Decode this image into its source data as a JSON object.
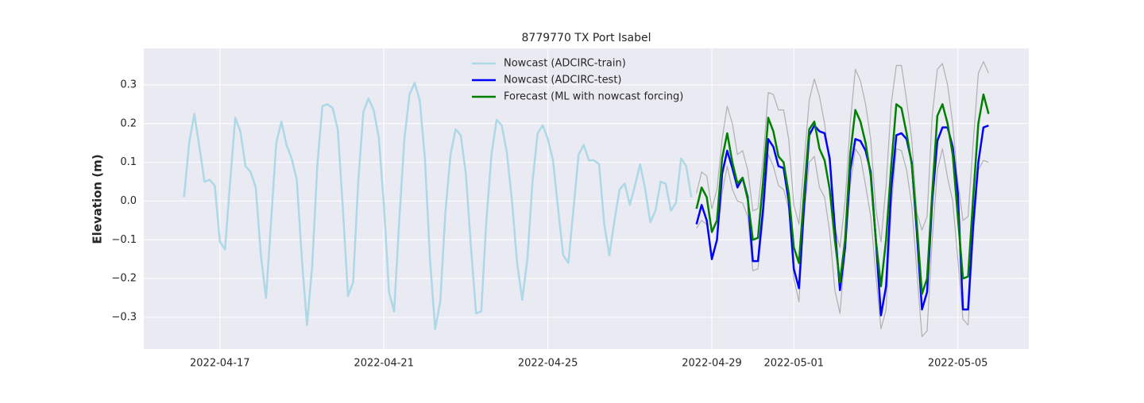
{
  "chart_data": {
    "type": "line",
    "title": "8779770 TX Port Isabel",
    "y_label": "Elevation (m)",
    "x": [
      "2022-04-16 03:00",
      "2022-04-16 06:00",
      "2022-04-16 09:00",
      "2022-04-16 12:00",
      "2022-04-16 15:00",
      "2022-04-16 18:00",
      "2022-04-16 21:00",
      "2022-04-17 00:00",
      "2022-04-17 03:00",
      "2022-04-17 06:00",
      "2022-04-17 09:00",
      "2022-04-17 12:00",
      "2022-04-17 15:00",
      "2022-04-17 18:00",
      "2022-04-17 21:00",
      "2022-04-18 00:00",
      "2022-04-18 03:00",
      "2022-04-18 06:00",
      "2022-04-18 09:00",
      "2022-04-18 12:00",
      "2022-04-18 15:00",
      "2022-04-18 18:00",
      "2022-04-18 21:00",
      "2022-04-19 00:00",
      "2022-04-19 03:00",
      "2022-04-19 06:00",
      "2022-04-19 09:00",
      "2022-04-19 12:00",
      "2022-04-19 15:00",
      "2022-04-19 18:00",
      "2022-04-19 21:00",
      "2022-04-20 00:00",
      "2022-04-20 03:00",
      "2022-04-20 06:00",
      "2022-04-20 09:00",
      "2022-04-20 12:00",
      "2022-04-20 15:00",
      "2022-04-20 18:00",
      "2022-04-20 21:00",
      "2022-04-21 00:00",
      "2022-04-21 03:00",
      "2022-04-21 06:00",
      "2022-04-21 09:00",
      "2022-04-21 12:00",
      "2022-04-21 15:00",
      "2022-04-21 18:00",
      "2022-04-21 21:00",
      "2022-04-22 00:00",
      "2022-04-22 03:00",
      "2022-04-22 06:00",
      "2022-04-22 09:00",
      "2022-04-22 12:00",
      "2022-04-22 15:00",
      "2022-04-22 18:00",
      "2022-04-22 21:00",
      "2022-04-23 00:00",
      "2022-04-23 03:00",
      "2022-04-23 06:00",
      "2022-04-23 09:00",
      "2022-04-23 12:00",
      "2022-04-23 15:00",
      "2022-04-23 18:00",
      "2022-04-23 21:00",
      "2022-04-24 00:00",
      "2022-04-24 03:00",
      "2022-04-24 06:00",
      "2022-04-24 09:00",
      "2022-04-24 12:00",
      "2022-04-24 15:00",
      "2022-04-24 18:00",
      "2022-04-24 21:00",
      "2022-04-25 00:00",
      "2022-04-25 03:00",
      "2022-04-25 06:00",
      "2022-04-25 09:00",
      "2022-04-25 12:00",
      "2022-04-25 15:00",
      "2022-04-25 18:00",
      "2022-04-25 21:00",
      "2022-04-26 00:00",
      "2022-04-26 03:00",
      "2022-04-26 06:00",
      "2022-04-26 09:00",
      "2022-04-26 12:00",
      "2022-04-26 15:00",
      "2022-04-26 18:00",
      "2022-04-26 21:00",
      "2022-04-27 00:00",
      "2022-04-27 03:00",
      "2022-04-27 06:00",
      "2022-04-27 09:00",
      "2022-04-27 12:00",
      "2022-04-27 15:00",
      "2022-04-27 18:00",
      "2022-04-27 21:00",
      "2022-04-28 00:00",
      "2022-04-28 03:00",
      "2022-04-28 06:00",
      "2022-04-28 09:00",
      "2022-04-28 12:00",
      "2022-04-28 15:00",
      "2022-04-28 18:00",
      "2022-04-28 21:00",
      "2022-04-29 00:00",
      "2022-04-29 03:00",
      "2022-04-29 06:00",
      "2022-04-29 09:00",
      "2022-04-29 12:00",
      "2022-04-29 15:00",
      "2022-04-29 18:00",
      "2022-04-29 21:00",
      "2022-04-30 00:00",
      "2022-04-30 03:00",
      "2022-04-30 06:00",
      "2022-04-30 09:00",
      "2022-04-30 12:00",
      "2022-04-30 15:00",
      "2022-04-30 18:00",
      "2022-04-30 21:00",
      "2022-05-01 00:00",
      "2022-05-01 03:00",
      "2022-05-01 06:00",
      "2022-05-01 09:00",
      "2022-05-01 12:00",
      "2022-05-01 15:00",
      "2022-05-01 18:00",
      "2022-05-01 21:00",
      "2022-05-02 00:00",
      "2022-05-02 03:00",
      "2022-05-02 06:00",
      "2022-05-02 09:00",
      "2022-05-02 12:00",
      "2022-05-02 15:00",
      "2022-05-02 18:00",
      "2022-05-02 21:00",
      "2022-05-03 00:00",
      "2022-05-03 03:00",
      "2022-05-03 06:00",
      "2022-05-03 09:00",
      "2022-05-03 12:00",
      "2022-05-03 15:00",
      "2022-05-03 18:00",
      "2022-05-03 21:00",
      "2022-05-04 00:00",
      "2022-05-04 03:00",
      "2022-05-04 06:00",
      "2022-05-04 09:00",
      "2022-05-04 12:00",
      "2022-05-04 15:00",
      "2022-05-04 18:00",
      "2022-05-04 21:00",
      "2022-05-05 00:00",
      "2022-05-05 03:00",
      "2022-05-05 06:00",
      "2022-05-05 09:00",
      "2022-05-05 12:00",
      "2022-05-05 15:00",
      "2022-05-05 18:00"
    ],
    "series": [
      {
        "color": "#b0b0b0",
        "width": 1.2,
        "values": [
          null,
          null,
          null,
          null,
          null,
          null,
          null,
          null,
          null,
          null,
          null,
          null,
          null,
          null,
          null,
          null,
          null,
          null,
          null,
          null,
          null,
          null,
          null,
          null,
          null,
          null,
          null,
          null,
          null,
          null,
          null,
          null,
          null,
          null,
          null,
          null,
          null,
          null,
          null,
          null,
          null,
          null,
          null,
          null,
          null,
          null,
          null,
          null,
          null,
          null,
          null,
          null,
          null,
          null,
          null,
          null,
          null,
          null,
          null,
          null,
          null,
          null,
          null,
          null,
          null,
          null,
          null,
          null,
          null,
          null,
          null,
          null,
          null,
          null,
          null,
          null,
          null,
          null,
          null,
          null,
          null,
          null,
          null,
          null,
          null,
          null,
          null,
          null,
          null,
          null,
          null,
          null,
          null,
          null,
          null,
          null,
          null,
          null,
          null,
          null,
          0.02,
          0.075,
          0.065,
          -0.02,
          0.03,
          0.16,
          0.245,
          0.2,
          0.12,
          0.13,
          0.08,
          -0.025,
          -0.02,
          0.11,
          0.28,
          0.275,
          0.235,
          0.235,
          0.16,
          -0.01,
          -0.06,
          0.1,
          0.26,
          0.315,
          0.27,
          0.2,
          0.09,
          -0.07,
          -0.12,
          0.0,
          0.2,
          0.34,
          0.31,
          0.25,
          0.16,
          -0.02,
          -0.105,
          0.04,
          0.25,
          0.35,
          0.35,
          0.26,
          0.16,
          -0.03,
          -0.075,
          -0.04,
          0.22,
          0.34,
          0.355,
          0.3,
          0.2,
          0.05,
          -0.05,
          -0.04,
          0.15,
          0.33,
          0.36,
          0.33
        ]
      },
      {
        "color": "#b0b0b0",
        "width": 1.2,
        "values": [
          null,
          null,
          null,
          null,
          null,
          null,
          null,
          null,
          null,
          null,
          null,
          null,
          null,
          null,
          null,
          null,
          null,
          null,
          null,
          null,
          null,
          null,
          null,
          null,
          null,
          null,
          null,
          null,
          null,
          null,
          null,
          null,
          null,
          null,
          null,
          null,
          null,
          null,
          null,
          null,
          null,
          null,
          null,
          null,
          null,
          null,
          null,
          null,
          null,
          null,
          null,
          null,
          null,
          null,
          null,
          null,
          null,
          null,
          null,
          null,
          null,
          null,
          null,
          null,
          null,
          null,
          null,
          null,
          null,
          null,
          null,
          null,
          null,
          null,
          null,
          null,
          null,
          null,
          null,
          null,
          null,
          null,
          null,
          null,
          null,
          null,
          null,
          null,
          null,
          null,
          null,
          null,
          null,
          null,
          null,
          null,
          null,
          null,
          null,
          null,
          -0.07,
          -0.05,
          -0.06,
          -0.14,
          -0.1,
          0.02,
          0.09,
          0.03,
          0.0,
          -0.005,
          -0.04,
          -0.18,
          -0.175,
          -0.05,
          0.12,
          0.09,
          0.04,
          0.03,
          -0.02,
          -0.2,
          -0.26,
          -0.04,
          0.1,
          0.115,
          0.035,
          0.01,
          -0.08,
          -0.23,
          -0.29,
          -0.13,
          0.04,
          0.135,
          0.115,
          0.04,
          -0.04,
          -0.19,
          -0.33,
          -0.28,
          -0.02,
          0.135,
          0.13,
          0.08,
          -0.01,
          -0.18,
          -0.35,
          -0.335,
          -0.1,
          0.08,
          0.135,
          0.06,
          0.0,
          -0.15,
          -0.305,
          -0.32,
          -0.1,
          0.08,
          0.105,
          0.1
        ]
      },
      {
        "name": "Nowcast (ADCIRC-train)",
        "color": "#add8e6",
        "width": 2.5,
        "values": [
          0.01,
          0.15,
          0.225,
          0.14,
          0.05,
          0.055,
          0.04,
          -0.105,
          -0.125,
          0.05,
          0.215,
          0.18,
          0.09,
          0.075,
          0.035,
          -0.14,
          -0.25,
          -0.05,
          0.15,
          0.205,
          0.145,
          0.11,
          0.055,
          -0.15,
          -0.32,
          -0.17,
          0.09,
          0.245,
          0.25,
          0.24,
          0.185,
          -0.02,
          -0.245,
          -0.21,
          0.05,
          0.23,
          0.265,
          0.235,
          0.165,
          -0.01,
          -0.235,
          -0.285,
          -0.05,
          0.16,
          0.275,
          0.305,
          0.26,
          0.11,
          -0.15,
          -0.33,
          -0.26,
          -0.03,
          0.12,
          0.185,
          0.17,
          0.07,
          -0.12,
          -0.29,
          -0.285,
          -0.05,
          0.12,
          0.21,
          0.195,
          0.125,
          0.0,
          -0.16,
          -0.255,
          -0.15,
          0.05,
          0.175,
          0.195,
          0.16,
          0.105,
          -0.02,
          -0.14,
          -0.16,
          -0.02,
          0.12,
          0.145,
          0.105,
          0.105,
          0.095,
          -0.06,
          -0.14,
          -0.05,
          0.03,
          0.045,
          -0.01,
          0.04,
          0.095,
          0.03,
          -0.055,
          -0.025,
          0.05,
          0.045,
          -0.025,
          -0.005,
          0.11,
          0.09,
          0.01,
          null,
          null,
          null,
          null,
          null,
          null,
          null,
          null,
          null,
          null,
          null,
          null,
          null,
          null,
          null,
          null,
          null,
          null,
          null,
          null,
          null,
          null,
          null,
          null,
          null,
          null,
          null,
          null,
          null,
          null,
          null,
          null,
          null,
          null,
          null,
          null,
          null,
          null,
          null,
          null,
          null,
          null,
          null,
          null,
          null,
          null,
          null,
          null,
          null,
          null,
          null,
          null,
          null,
          null,
          null,
          null,
          null,
          null
        ]
      },
      {
        "name": "Nowcast (ADCIRC-test)",
        "color": "#0000ff",
        "width": 2.5,
        "values": [
          null,
          null,
          null,
          null,
          null,
          null,
          null,
          null,
          null,
          null,
          null,
          null,
          null,
          null,
          null,
          null,
          null,
          null,
          null,
          null,
          null,
          null,
          null,
          null,
          null,
          null,
          null,
          null,
          null,
          null,
          null,
          null,
          null,
          null,
          null,
          null,
          null,
          null,
          null,
          null,
          null,
          null,
          null,
          null,
          null,
          null,
          null,
          null,
          null,
          null,
          null,
          null,
          null,
          null,
          null,
          null,
          null,
          null,
          null,
          null,
          null,
          null,
          null,
          null,
          null,
          null,
          null,
          null,
          null,
          null,
          null,
          null,
          null,
          null,
          null,
          null,
          null,
          null,
          null,
          null,
          null,
          null,
          null,
          null,
          null,
          null,
          null,
          null,
          null,
          null,
          null,
          null,
          null,
          null,
          null,
          null,
          null,
          null,
          null,
          null,
          -0.06,
          -0.01,
          -0.05,
          -0.15,
          -0.1,
          0.07,
          0.13,
          0.085,
          0.035,
          0.06,
          0.01,
          -0.155,
          -0.155,
          -0.02,
          0.16,
          0.14,
          0.09,
          0.085,
          0.0,
          -0.175,
          -0.225,
          -0.01,
          0.17,
          0.195,
          0.18,
          0.175,
          0.11,
          -0.07,
          -0.23,
          -0.12,
          0.08,
          0.16,
          0.155,
          0.13,
          0.075,
          -0.1,
          -0.295,
          -0.22,
          0.03,
          0.17,
          0.175,
          0.16,
          0.1,
          -0.08,
          -0.28,
          -0.235,
          0.0,
          0.155,
          0.19,
          0.19,
          0.14,
          0.02,
          -0.28,
          -0.28,
          -0.06,
          0.1,
          0.19,
          0.195
        ]
      },
      {
        "name": "Forecast (ML with nowcast forcing)",
        "color": "#008000",
        "width": 2.5,
        "values": [
          null,
          null,
          null,
          null,
          null,
          null,
          null,
          null,
          null,
          null,
          null,
          null,
          null,
          null,
          null,
          null,
          null,
          null,
          null,
          null,
          null,
          null,
          null,
          null,
          null,
          null,
          null,
          null,
          null,
          null,
          null,
          null,
          null,
          null,
          null,
          null,
          null,
          null,
          null,
          null,
          null,
          null,
          null,
          null,
          null,
          null,
          null,
          null,
          null,
          null,
          null,
          null,
          null,
          null,
          null,
          null,
          null,
          null,
          null,
          null,
          null,
          null,
          null,
          null,
          null,
          null,
          null,
          null,
          null,
          null,
          null,
          null,
          null,
          null,
          null,
          null,
          null,
          null,
          null,
          null,
          null,
          null,
          null,
          null,
          null,
          null,
          null,
          null,
          null,
          null,
          null,
          null,
          null,
          null,
          null,
          null,
          null,
          null,
          null,
          null,
          -0.02,
          0.035,
          0.01,
          -0.08,
          -0.05,
          0.11,
          0.175,
          0.1,
          0.045,
          0.06,
          0.005,
          -0.1,
          -0.095,
          0.05,
          0.215,
          0.18,
          0.115,
          0.1,
          0.02,
          -0.12,
          -0.16,
          0.02,
          0.185,
          0.205,
          0.135,
          0.105,
          0.03,
          -0.1,
          -0.21,
          -0.1,
          0.12,
          0.235,
          0.205,
          0.15,
          0.065,
          -0.1,
          -0.22,
          -0.1,
          0.09,
          0.25,
          0.24,
          0.175,
          0.095,
          -0.06,
          -0.24,
          -0.2,
          0.02,
          0.22,
          0.25,
          0.2,
          0.12,
          -0.04,
          -0.2,
          -0.195,
          0.01,
          0.2,
          0.275,
          0.225
        ]
      }
    ],
    "xlim": [
      "2022-04-15 03:27",
      "2022-05-06 17:33"
    ],
    "xticks": [
      "2022-04-17",
      "2022-04-21",
      "2022-04-25",
      "2022-04-29",
      "2022-05-01",
      "2022-05-05"
    ],
    "ylim": [
      -0.382,
      0.394
    ],
    "yticks": [
      {
        "value": -0.3,
        "label": "−0.3"
      },
      {
        "value": -0.2,
        "label": "−0.2"
      },
      {
        "value": -0.1,
        "label": "−0.1"
      },
      {
        "value": 0,
        "label": "0.0"
      },
      0.1,
      0.2,
      0.3
    ],
    "grid": true,
    "legend": "upper center"
  }
}
